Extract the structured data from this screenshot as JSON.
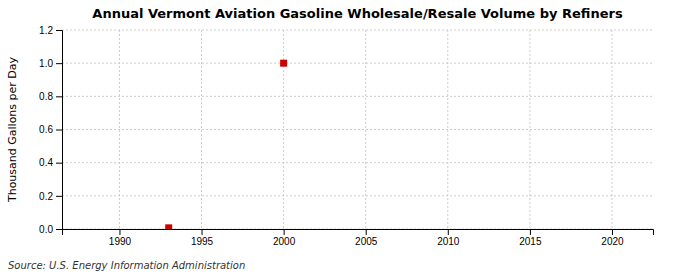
{
  "chart_data": {
    "type": "scatter",
    "title": "Annual Vermont Aviation Gasoline Wholesale/Resale Volume by Refiners",
    "ylabel": "Thousand Gallons per Day",
    "annotation": "Source: U.S. Energy Information Administration",
    "x": [
      1993,
      2000
    ],
    "values": [
      0.007,
      1.0
    ],
    "color": "#cc0000",
    "marker": "square",
    "xlim": [
      1986.5,
      2022.5
    ],
    "ylim": [
      0.0,
      1.2
    ],
    "xticks": [
      1990,
      1995,
      2000,
      2005,
      2010,
      2015,
      2020
    ],
    "yticks": [
      {
        "value": 0.0,
        "label": "0.0"
      },
      0.2,
      0.4,
      0.6,
      0.8,
      {
        "value": 1.0,
        "label": "1.0"
      },
      1.2
    ],
    "grid": true
  }
}
